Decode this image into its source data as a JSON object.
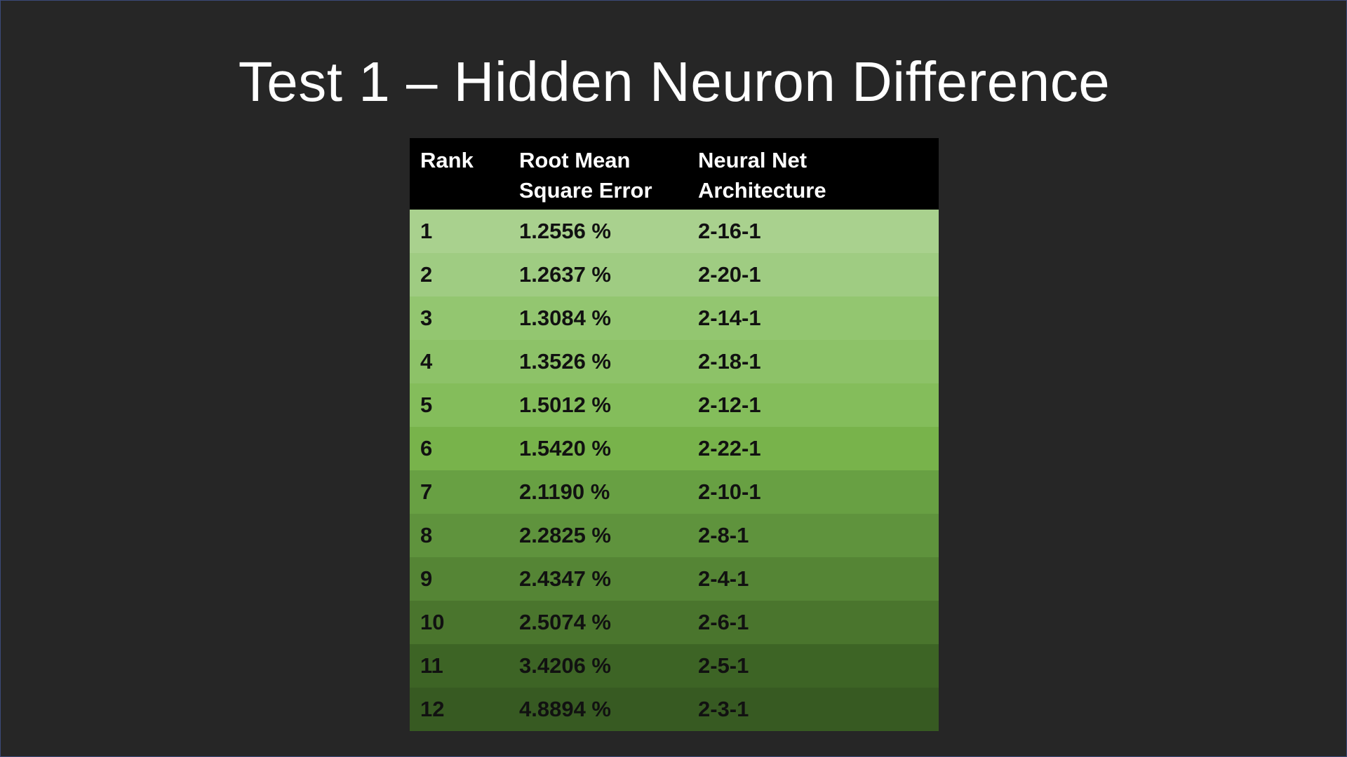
{
  "slide": {
    "title": "Test 1 – Hidden Neuron Difference"
  },
  "table": {
    "headers": {
      "rank": "Rank",
      "rmse_line1": "Root Mean",
      "rmse_line2": "Square Error",
      "arch_line1": "Neural Net",
      "arch_line2": "Architecture"
    },
    "rows": [
      {
        "rank": "1",
        "rmse": "1.2556 %",
        "arch": "2-16-1",
        "color": "#a9d18e"
      },
      {
        "rank": "2",
        "rmse": "1.2637 %",
        "arch": "2-20-1",
        "color": "#9fcc82"
      },
      {
        "rank": "3",
        "rmse": "1.3084 %",
        "arch": "2-14-1",
        "color": "#93c670"
      },
      {
        "rank": "4",
        "rmse": "1.3526 %",
        "arch": "2-18-1",
        "color": "#8dc268"
      },
      {
        "rank": "5",
        "rmse": "1.5012 %",
        "arch": "2-12-1",
        "color": "#84bd5b"
      },
      {
        "rank": "6",
        "rmse": "1.5420 %",
        "arch": "2-22-1",
        "color": "#78b34b"
      },
      {
        "rank": "7",
        "rmse": "2.1190 %",
        "arch": "2-10-1",
        "color": "#68a043"
      },
      {
        "rank": "8",
        "rmse": "2.2825 %",
        "arch": "2-8-1",
        "color": "#5f933d"
      },
      {
        "rank": "9",
        "rmse": "2.4347 %",
        "arch": "2-4-1",
        "color": "#558535"
      },
      {
        "rank": "10",
        "rmse": "2.5074 %",
        "arch": "2-6-1",
        "color": "#4a752d"
      },
      {
        "rank": "11",
        "rmse": "3.4206 %",
        "arch": "2-5-1",
        "color": "#3d6425"
      },
      {
        "rank": "12",
        "rmse": "4.8894 %",
        "arch": "2-3-1",
        "color": "#375a22"
      }
    ]
  }
}
